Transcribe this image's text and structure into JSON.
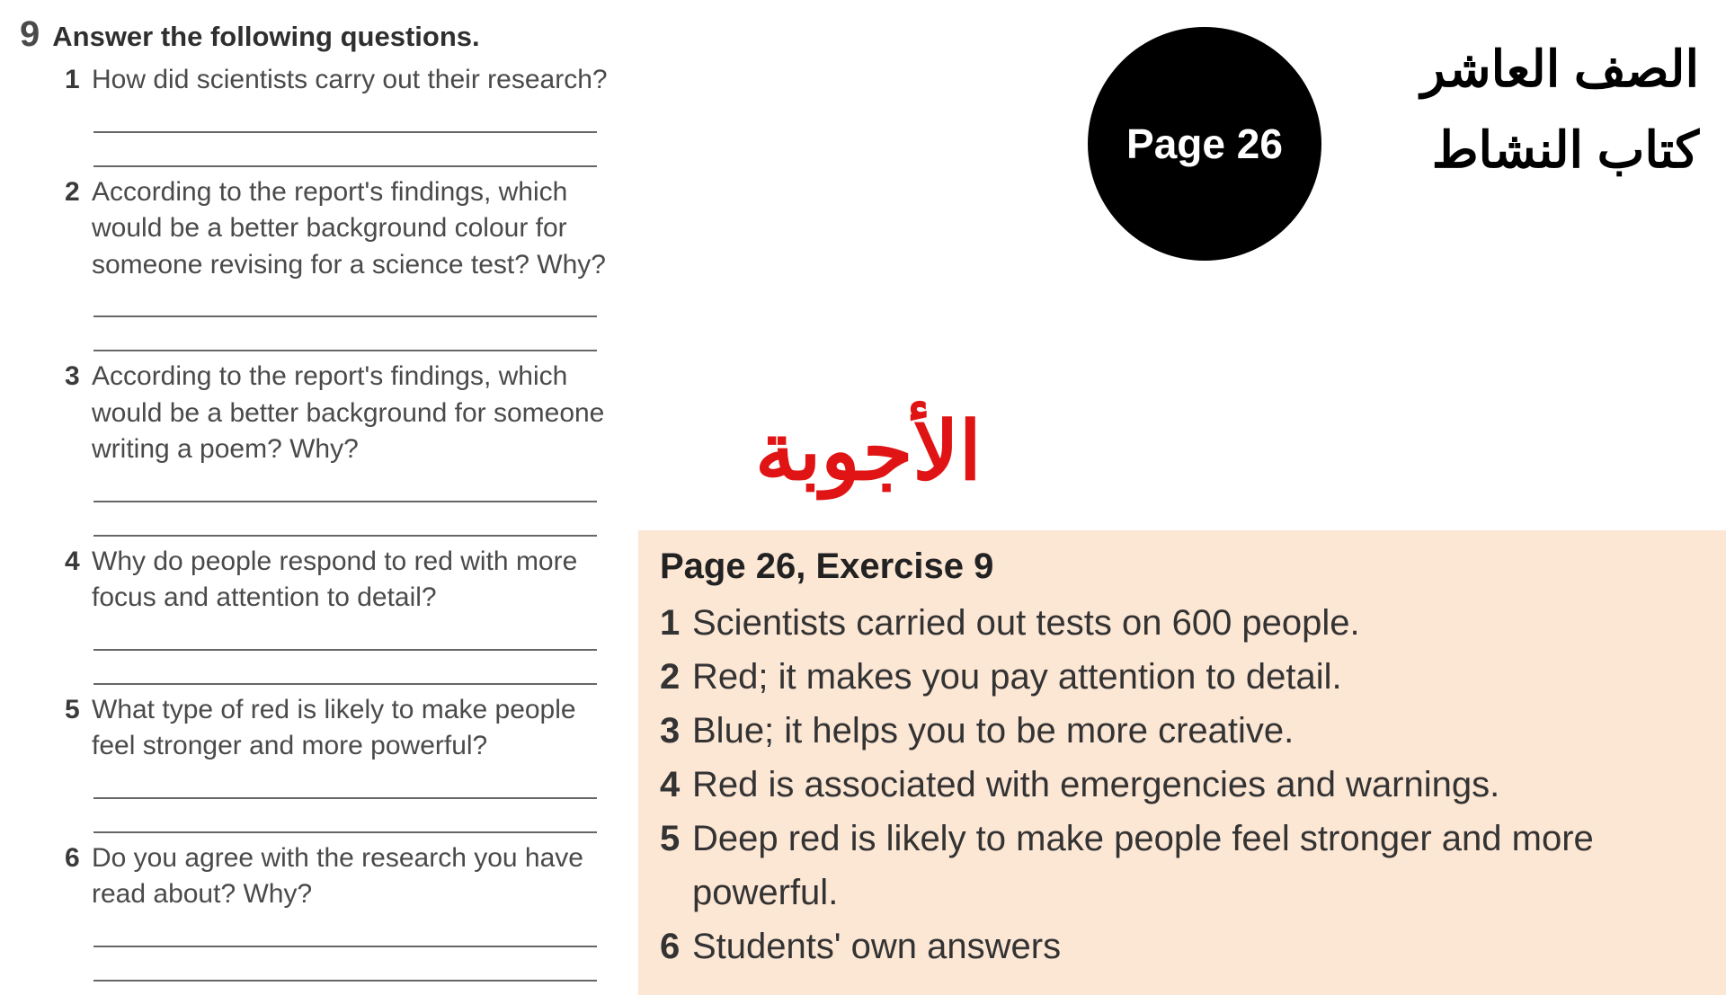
{
  "exercise": {
    "number": "9",
    "title": "Answer the following questions.",
    "questions": [
      {
        "n": "1",
        "text": "How did scientists carry out their research?",
        "lines": 2
      },
      {
        "n": "2",
        "text": "According to the report's findings, which would be a better background colour for someone revising for a science test? Why?",
        "lines": 2
      },
      {
        "n": "3",
        "text": "According to the report's findings, which would be a better background for someone writing a poem? Why?",
        "lines": 2
      },
      {
        "n": "4",
        "text": "Why do people respond to red with more focus and attention to detail?",
        "lines": 2
      },
      {
        "n": "5",
        "text": "What type of red is likely to make people feel stronger and more powerful?",
        "lines": 2
      },
      {
        "n": "6",
        "text": "Do you agree with the research you have read about? Why?",
        "lines": 2
      }
    ]
  },
  "badge": {
    "label": "Page 26"
  },
  "arabic": {
    "line1": "الصف العاشر",
    "line2": "كتاب النشاط"
  },
  "answers_title": "الأجوبة",
  "answers": {
    "header": "Page 26, Exercise 9",
    "items": [
      {
        "n": "1",
        "text": "Scientists carried out tests on 600 people."
      },
      {
        "n": "2",
        "text": "Red; it makes you pay attention to detail."
      },
      {
        "n": "3",
        "text": "Blue; it helps you to be more creative."
      },
      {
        "n": "4",
        "text": "Red is associated with emergencies and warnings."
      },
      {
        "n": "5",
        "text": "Deep red is likely to make people feel stronger and more powerful."
      },
      {
        "n": "6",
        "text": "Students' own answers"
      }
    ]
  },
  "colors": {
    "answers_bg": "#fce6d4",
    "answers_title_color": "#e01414",
    "badge_bg": "#000000",
    "badge_text": "#ffffff"
  }
}
